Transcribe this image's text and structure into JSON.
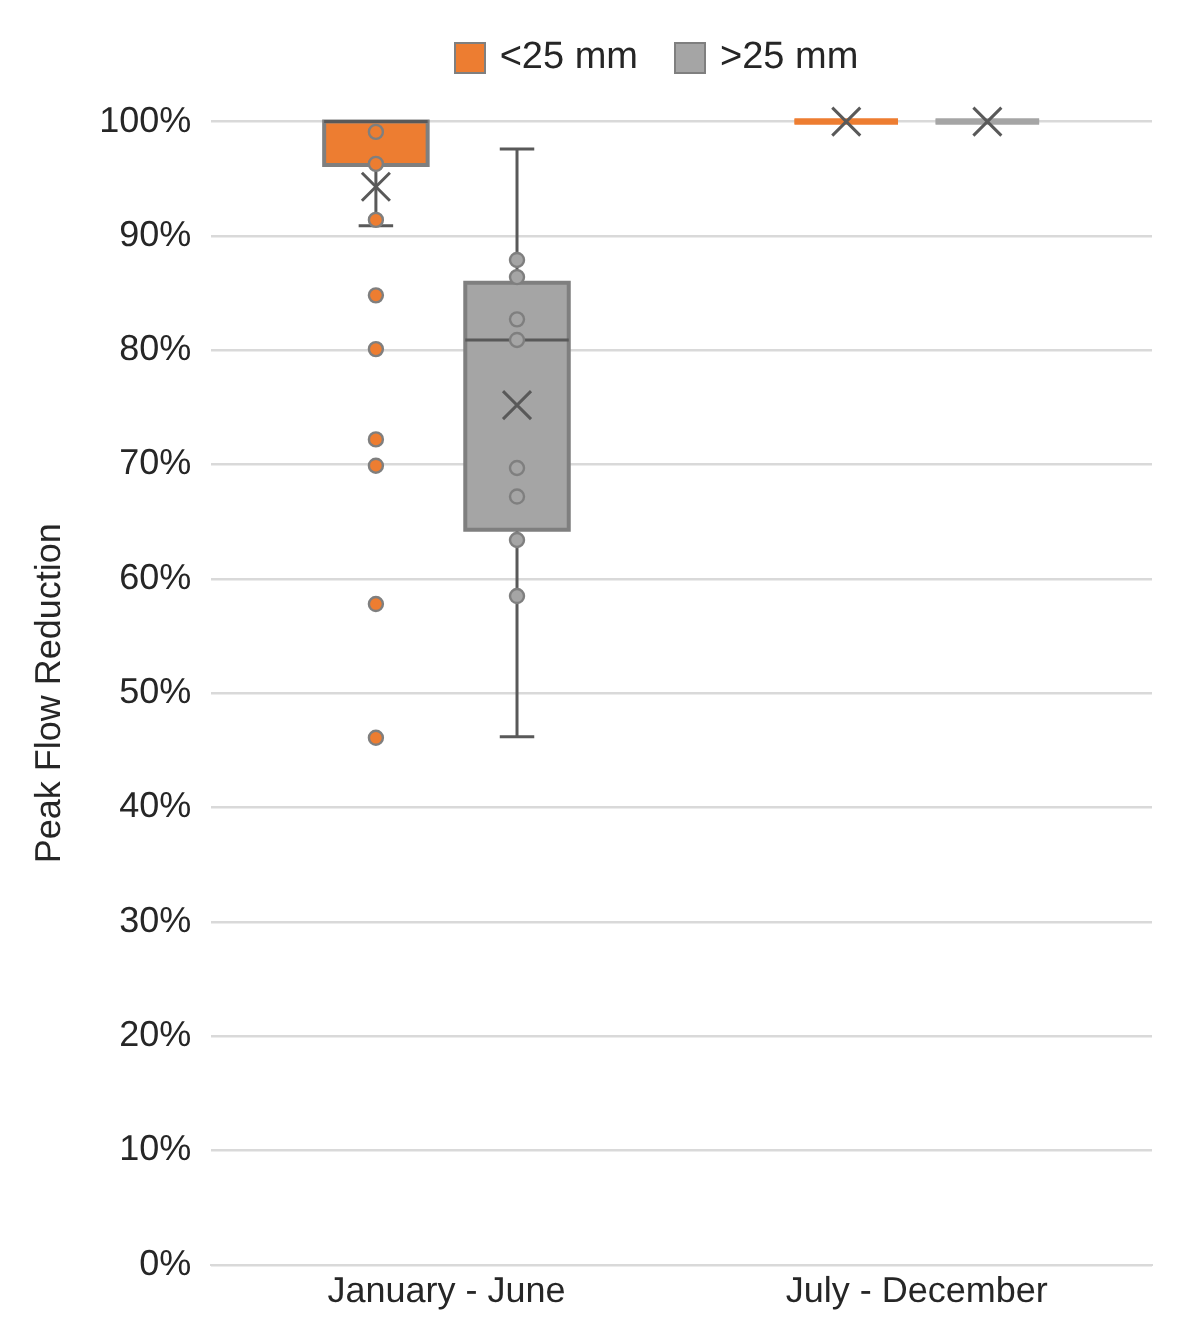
{
  "chart_data": {
    "type": "box",
    "ylabel": "Peak Flow Reduction",
    "categories": [
      "January - June",
      "July - December"
    ],
    "ylim": [
      0,
      100
    ],
    "yticks": [
      {
        "value": 0,
        "label": "0%"
      },
      {
        "value": 10,
        "label": "10%"
      },
      {
        "value": 20,
        "label": "20%"
      },
      {
        "value": 30,
        "label": "30%"
      },
      {
        "value": 40,
        "label": "40%"
      },
      {
        "value": 50,
        "label": "50%"
      },
      {
        "value": 60,
        "label": "60%"
      },
      {
        "value": 70,
        "label": "70%"
      },
      {
        "value": 80,
        "label": "80%"
      },
      {
        "value": 90,
        "label": "90%"
      },
      {
        "value": 100,
        "label": "100%"
      }
    ],
    "grid": "y",
    "legend": "top",
    "series": [
      {
        "name": "<25 mm",
        "color": "#ed7d31",
        "boxes": [
          {
            "low": 90.9,
            "q1": 96.2,
            "median": 100,
            "q3": 100,
            "high": 100,
            "mean": 94.3,
            "outliers": [
              84.8,
              80.1,
              72.2,
              69.9,
              57.8,
              46.1
            ]
          },
          {
            "low": 100,
            "q1": 100,
            "median": 100,
            "q3": 100,
            "high": 100,
            "mean": 100
          }
        ]
      },
      {
        "name": ">25 mm",
        "color": "#a5a5a5",
        "boxes": [
          {
            "low": 46.2,
            "q1": 64.3,
            "median": 80.9,
            "q3": 85.9,
            "high": 97.6,
            "mean": 75.2
          },
          {
            "low": 100,
            "q1": 100,
            "median": 100,
            "q3": 100,
            "high": 100,
            "mean": 100
          }
        ]
      },
      {
        "type": "scatter",
        "color": "#ed7d31",
        "marker": "circle",
        "x": [
          "January - June",
          "January - June",
          "January - June"
        ],
        "values": [
          99.1,
          96.3,
          91.4
        ]
      },
      {
        "type": "scatter",
        "color": "#a5a5a5",
        "marker": "circle",
        "x": [
          "January - June",
          "January - June",
          "January - June",
          "January - June",
          "January - June",
          "January - June",
          "January - June",
          "January - June"
        ],
        "values": [
          87.9,
          86.4,
          82.7,
          80.9,
          69.7,
          67.2,
          63.4,
          58.5
        ]
      }
    ]
  }
}
